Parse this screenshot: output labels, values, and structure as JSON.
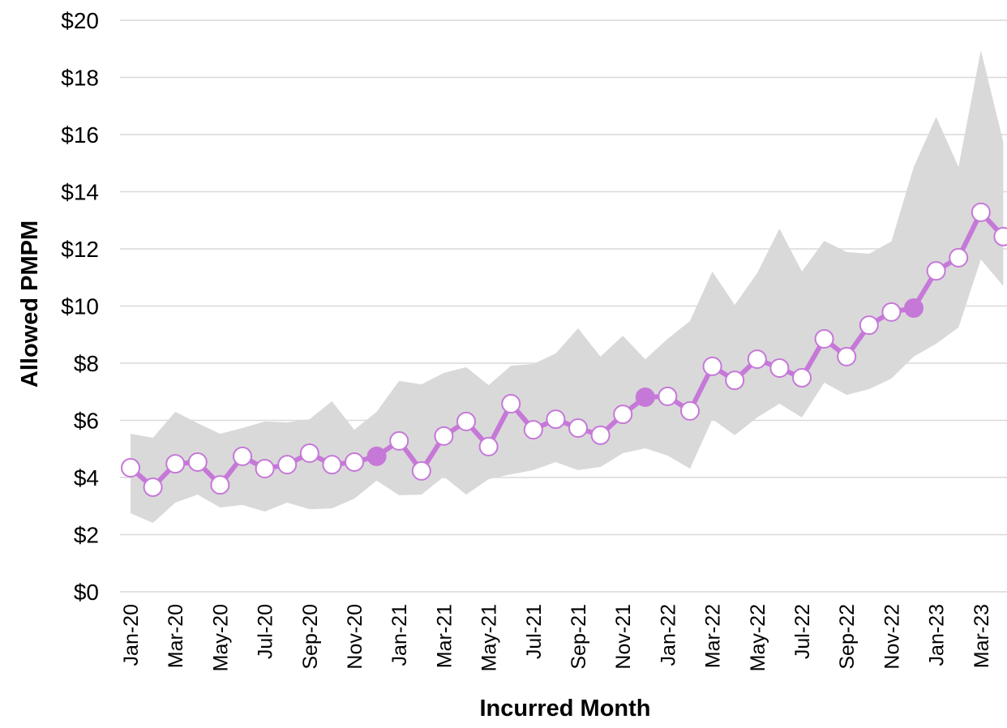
{
  "chart_data": {
    "type": "line",
    "x_label": "Incurred Month",
    "y_label": "Allowed PMPM",
    "categories": [
      "Jan-20",
      null,
      "Mar-20",
      null,
      "May-20",
      null,
      "Jul-20",
      null,
      "Sep-20",
      null,
      "Nov-20",
      null,
      "Jan-21",
      null,
      "Mar-21",
      null,
      "May-21",
      null,
      "Jul-21",
      null,
      "Sep-21",
      null,
      "Nov-21",
      null,
      "Jan-22",
      null,
      "Mar-22",
      null,
      "May-22",
      null,
      "Jul-22",
      null,
      "Sep-22",
      null,
      "Nov-22",
      null,
      "Jan-23",
      null,
      "Mar-23",
      null
    ],
    "series": [
      {
        "color": "#c678d8",
        "highlight": [
          11,
          23,
          35
        ],
        "values": [
          4.34,
          3.66,
          4.48,
          4.54,
          3.74,
          4.74,
          4.31,
          4.45,
          4.85,
          4.45,
          4.54,
          4.74,
          5.28,
          4.23,
          5.45,
          5.96,
          5.08,
          6.58,
          5.67,
          6.04,
          5.73,
          5.48,
          6.21,
          6.81,
          6.84,
          6.33,
          7.89,
          7.4,
          8.14,
          7.83,
          7.49,
          8.85,
          8.23,
          9.33,
          9.79,
          9.93,
          11.23,
          11.69,
          13.28,
          12.43
        ]
      }
    ],
    "band": {
      "color": "#d9d9d9",
      "upper": [
        5.53,
        5.39,
        6.3,
        5.9,
        5.53,
        5.73,
        5.96,
        5.93,
        6.04,
        6.67,
        5.67,
        6.3,
        7.38,
        7.26,
        7.66,
        7.86,
        7.23,
        7.91,
        7.97,
        8.34,
        9.22,
        8.23,
        8.96,
        8.14,
        8.85,
        9.48,
        11.21,
        10.04,
        11.15,
        12.71,
        11.21,
        12.28,
        11.89,
        11.83,
        12.26,
        14.87,
        16.62,
        14.87,
        18.95,
        15.74
      ],
      "lower": [
        2.75,
        2.41,
        3.12,
        3.4,
        2.95,
        3.04,
        2.81,
        3.12,
        2.89,
        2.92,
        3.26,
        3.89,
        3.38,
        3.4,
        4.03,
        3.4,
        3.94,
        4.11,
        4.26,
        4.54,
        4.26,
        4.37,
        4.85,
        5.02,
        4.77,
        4.31,
        6.04,
        5.48,
        6.1,
        6.58,
        6.1,
        7.32,
        6.89,
        7.09,
        7.46,
        8.23,
        8.68,
        9.25,
        11.63,
        10.7
      ]
    },
    "ylim": [
      0,
      20
    ],
    "yticks": [
      {
        "value": 0,
        "label": "$0"
      },
      {
        "value": 2,
        "label": "$2"
      },
      {
        "value": 4,
        "label": "$4"
      },
      {
        "value": 6,
        "label": "$6"
      },
      {
        "value": 8,
        "label": "$8"
      },
      {
        "value": 10,
        "label": "$10"
      },
      {
        "value": 12,
        "label": "$12"
      },
      {
        "value": 14,
        "label": "$14"
      },
      {
        "value": 16,
        "label": "$16"
      },
      {
        "value": 18,
        "label": "$18"
      },
      {
        "value": 20,
        "label": "$20"
      }
    ],
    "grid": true
  }
}
